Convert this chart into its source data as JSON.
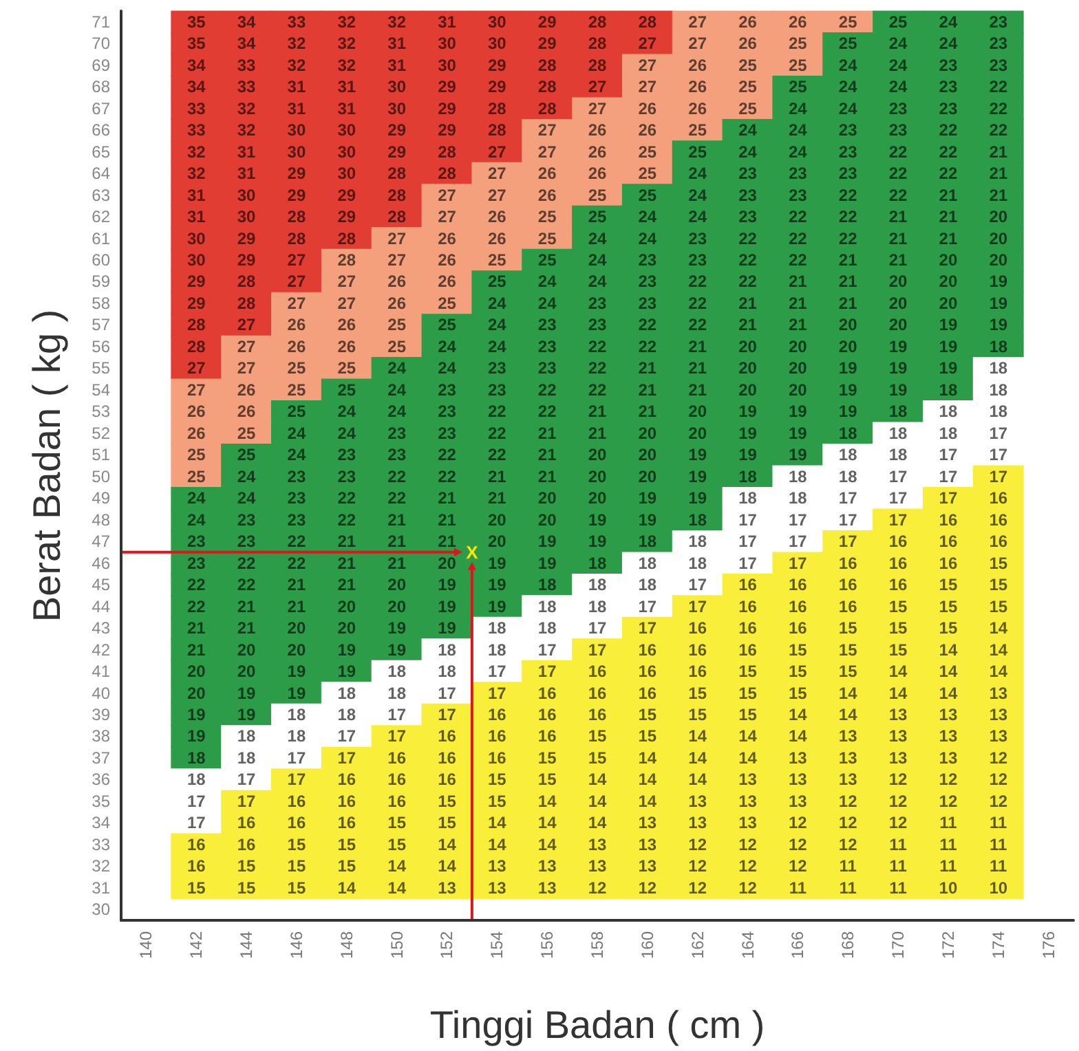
{
  "chart_data": {
    "type": "heatmap",
    "xlabel": "Tinggi Badan ( cm )",
    "ylabel": "Berat Badan ( kg )",
    "data_labels": true,
    "categories": [
      "140",
      "142",
      "144",
      "146",
      "148",
      "150",
      "152",
      "154",
      "156",
      "158",
      "160",
      "162",
      "164",
      "166",
      "168",
      "170",
      "172",
      "174",
      "176"
    ],
    "y_categories": [
      "71",
      "70",
      "69",
      "68",
      "67",
      "66",
      "65",
      "64",
      "63",
      "62",
      "61",
      "60",
      "59",
      "58",
      "57",
      "56",
      "55",
      "54",
      "53",
      "52",
      "51",
      "50",
      "49",
      "48",
      "47",
      "46",
      "45",
      "44",
      "43",
      "42",
      "41",
      "40",
      "39",
      "38",
      "37",
      "36",
      "35",
      "34",
      "33",
      "32",
      "31",
      "30"
    ],
    "cells": [
      [
        null,
        35,
        34,
        33,
        32,
        32,
        31,
        30,
        29,
        28,
        28,
        27,
        26,
        26,
        25,
        25,
        24,
        23,
        null
      ],
      [
        null,
        35,
        34,
        32,
        32,
        31,
        30,
        30,
        29,
        28,
        27,
        27,
        26,
        25,
        25,
        24,
        24,
        23,
        null
      ],
      [
        null,
        34,
        33,
        32,
        32,
        31,
        30,
        29,
        28,
        28,
        27,
        26,
        25,
        25,
        24,
        24,
        23,
        23,
        null
      ],
      [
        null,
        34,
        33,
        31,
        31,
        30,
        29,
        29,
        28,
        27,
        27,
        26,
        25,
        25,
        24,
        24,
        23,
        22,
        null
      ],
      [
        null,
        33,
        32,
        31,
        31,
        30,
        29,
        28,
        28,
        27,
        26,
        26,
        25,
        24,
        24,
        23,
        23,
        22,
        null
      ],
      [
        null,
        33,
        32,
        30,
        30,
        29,
        29,
        28,
        27,
        26,
        26,
        25,
        24,
        24,
        23,
        23,
        22,
        22,
        null
      ],
      [
        null,
        32,
        31,
        30,
        30,
        29,
        28,
        27,
        27,
        26,
        25,
        25,
        24,
        24,
        23,
        22,
        22,
        21,
        null
      ],
      [
        null,
        32,
        31,
        29,
        30,
        28,
        28,
        27,
        26,
        26,
        25,
        24,
        23,
        23,
        23,
        22,
        22,
        21,
        null
      ],
      [
        null,
        31,
        30,
        29,
        29,
        28,
        27,
        27,
        26,
        25,
        25,
        24,
        23,
        23,
        22,
        22,
        21,
        21,
        null
      ],
      [
        null,
        31,
        30,
        28,
        29,
        28,
        27,
        26,
        25,
        25,
        24,
        24,
        23,
        22,
        22,
        21,
        21,
        20,
        null
      ],
      [
        null,
        30,
        29,
        28,
        28,
        27,
        26,
        26,
        25,
        24,
        24,
        23,
        22,
        22,
        22,
        21,
        21,
        20,
        null
      ],
      [
        null,
        30,
        29,
        27,
        28,
        27,
        26,
        25,
        25,
        24,
        23,
        23,
        22,
        22,
        21,
        21,
        20,
        20,
        null
      ],
      [
        null,
        29,
        28,
        27,
        27,
        26,
        26,
        25,
        24,
        24,
        23,
        22,
        22,
        21,
        21,
        20,
        20,
        19,
        null
      ],
      [
        null,
        29,
        28,
        27,
        27,
        26,
        25,
        24,
        24,
        23,
        23,
        22,
        21,
        21,
        21,
        20,
        20,
        19,
        null
      ],
      [
        null,
        28,
        27,
        26,
        26,
        25,
        25,
        24,
        23,
        23,
        22,
        22,
        21,
        21,
        20,
        20,
        19,
        19,
        null
      ],
      [
        null,
        28,
        27,
        26,
        26,
        25,
        24,
        24,
        23,
        22,
        22,
        21,
        20,
        20,
        20,
        19,
        19,
        18,
        null
      ],
      [
        null,
        27,
        27,
        25,
        25,
        24,
        24,
        23,
        23,
        22,
        21,
        21,
        20,
        20,
        19,
        19,
        19,
        18,
        null
      ],
      [
        null,
        27,
        26,
        25,
        25,
        24,
        23,
        23,
        22,
        22,
        21,
        21,
        20,
        20,
        19,
        19,
        18,
        18,
        null
      ],
      [
        null,
        26,
        26,
        25,
        24,
        24,
        23,
        22,
        22,
        21,
        21,
        20,
        19,
        19,
        19,
        18,
        18,
        18,
        null
      ],
      [
        null,
        26,
        25,
        24,
        24,
        23,
        23,
        22,
        21,
        21,
        20,
        20,
        19,
        19,
        18,
        18,
        18,
        17,
        null
      ],
      [
        null,
        25,
        25,
        24,
        23,
        23,
        22,
        22,
        21,
        20,
        20,
        19,
        19,
        19,
        18,
        18,
        17,
        17,
        null
      ],
      [
        null,
        25,
        24,
        23,
        23,
        22,
        22,
        21,
        21,
        20,
        20,
        19,
        18,
        18,
        18,
        17,
        17,
        17,
        null
      ],
      [
        null,
        24,
        24,
        23,
        22,
        22,
        21,
        21,
        20,
        20,
        19,
        19,
        18,
        18,
        17,
        17,
        17,
        16,
        null
      ],
      [
        null,
        24,
        23,
        23,
        22,
        21,
        21,
        20,
        20,
        19,
        19,
        18,
        17,
        17,
        17,
        17,
        16,
        16,
        null
      ],
      [
        null,
        23,
        23,
        22,
        21,
        21,
        21,
        20,
        19,
        19,
        18,
        18,
        17,
        17,
        17,
        16,
        16,
        16,
        null
      ],
      [
        null,
        23,
        22,
        22,
        21,
        21,
        20,
        19,
        19,
        18,
        18,
        18,
        17,
        17,
        16,
        16,
        16,
        15,
        null
      ],
      [
        null,
        22,
        22,
        21,
        21,
        20,
        19,
        19,
        18,
        18,
        18,
        17,
        16,
        16,
        16,
        16,
        15,
        15,
        null
      ],
      [
        null,
        22,
        21,
        21,
        20,
        20,
        19,
        19,
        18,
        18,
        17,
        17,
        16,
        16,
        16,
        15,
        15,
        15,
        null
      ],
      [
        null,
        21,
        21,
        20,
        20,
        19,
        19,
        18,
        18,
        17,
        17,
        16,
        16,
        16,
        15,
        15,
        15,
        14,
        null
      ],
      [
        null,
        21,
        20,
        20,
        19,
        19,
        18,
        18,
        17,
        17,
        16,
        16,
        16,
        15,
        15,
        15,
        14,
        14,
        null
      ],
      [
        null,
        20,
        20,
        19,
        19,
        18,
        18,
        17,
        17,
        16,
        16,
        16,
        15,
        15,
        15,
        14,
        14,
        14,
        null
      ],
      [
        null,
        20,
        19,
        19,
        18,
        18,
        17,
        17,
        16,
        16,
        16,
        15,
        15,
        15,
        14,
        14,
        14,
        13,
        null
      ],
      [
        null,
        19,
        19,
        18,
        18,
        17,
        17,
        16,
        16,
        16,
        15,
        15,
        15,
        14,
        14,
        13,
        13,
        13,
        null
      ],
      [
        null,
        19,
        18,
        18,
        17,
        17,
        16,
        16,
        16,
        15,
        15,
        14,
        14,
        14,
        13,
        13,
        13,
        13,
        null
      ],
      [
        null,
        18,
        18,
        17,
        17,
        16,
        16,
        16,
        15,
        15,
        14,
        14,
        14,
        13,
        13,
        13,
        13,
        12,
        null
      ],
      [
        null,
        18,
        17,
        17,
        16,
        16,
        16,
        15,
        15,
        14,
        14,
        14,
        13,
        13,
        13,
        12,
        12,
        12,
        null
      ],
      [
        null,
        17,
        17,
        16,
        16,
        16,
        15,
        15,
        14,
        14,
        14,
        13,
        13,
        13,
        12,
        12,
        12,
        12,
        null
      ],
      [
        null,
        17,
        16,
        16,
        16,
        15,
        15,
        14,
        14,
        14,
        13,
        13,
        13,
        12,
        12,
        12,
        11,
        11,
        null
      ],
      [
        null,
        16,
        16,
        15,
        15,
        15,
        14,
        14,
        14,
        13,
        13,
        12,
        12,
        12,
        12,
        11,
        11,
        11,
        null
      ],
      [
        null,
        16,
        15,
        15,
        15,
        14,
        14,
        13,
        13,
        13,
        13,
        12,
        12,
        12,
        11,
        11,
        11,
        11,
        null
      ],
      [
        null,
        15,
        15,
        15,
        14,
        14,
        13,
        13,
        13,
        12,
        12,
        12,
        12,
        11,
        11,
        11,
        10,
        10,
        null
      ],
      [
        null,
        null,
        null,
        null,
        null,
        null,
        null,
        null,
        null,
        null,
        null,
        null,
        null,
        null,
        null,
        null,
        null,
        null,
        null
      ]
    ],
    "colors": [
      [
        null,
        "#e23d33",
        "#e23d33",
        "#e23d33",
        "#e23d33",
        "#e23d33",
        "#e23d33",
        "#e23d33",
        "#e23d33",
        "#e23d33",
        "#e23d33",
        "#f5a07c",
        "#f5a07c",
        "#f5a07c",
        "#f5a07c",
        "#2c9c48",
        "#2c9c48",
        "#2c9c48",
        null
      ],
      [
        null,
        "#e23d33",
        "#e23d33",
        "#e23d33",
        "#e23d33",
        "#e23d33",
        "#e23d33",
        "#e23d33",
        "#e23d33",
        "#e23d33",
        "#e23d33",
        "#f5a07c",
        "#f5a07c",
        "#f5a07c",
        "#2c9c48",
        "#2c9c48",
        "#2c9c48",
        "#2c9c48",
        null
      ],
      [
        null,
        "#e23d33",
        "#e23d33",
        "#e23d33",
        "#e23d33",
        "#e23d33",
        "#e23d33",
        "#e23d33",
        "#e23d33",
        "#e23d33",
        "#f5a07c",
        "#f5a07c",
        "#f5a07c",
        "#f5a07c",
        "#2c9c48",
        "#2c9c48",
        "#2c9c48",
        "#2c9c48",
        null
      ],
      [
        null,
        "#e23d33",
        "#e23d33",
        "#e23d33",
        "#e23d33",
        "#e23d33",
        "#e23d33",
        "#e23d33",
        "#e23d33",
        "#e23d33",
        "#f5a07c",
        "#f5a07c",
        "#f5a07c",
        "#2c9c48",
        "#2c9c48",
        "#2c9c48",
        "#2c9c48",
        "#2c9c48",
        null
      ],
      [
        null,
        "#e23d33",
        "#e23d33",
        "#e23d33",
        "#e23d33",
        "#e23d33",
        "#e23d33",
        "#e23d33",
        "#e23d33",
        "#f5a07c",
        "#f5a07c",
        "#f5a07c",
        "#f5a07c",
        "#2c9c48",
        "#2c9c48",
        "#2c9c48",
        "#2c9c48",
        "#2c9c48",
        null
      ],
      [
        null,
        "#e23d33",
        "#e23d33",
        "#e23d33",
        "#e23d33",
        "#e23d33",
        "#e23d33",
        "#e23d33",
        "#f5a07c",
        "#f5a07c",
        "#f5a07c",
        "#f5a07c",
        "#2c9c48",
        "#2c9c48",
        "#2c9c48",
        "#2c9c48",
        "#2c9c48",
        "#2c9c48",
        null
      ],
      [
        null,
        "#e23d33",
        "#e23d33",
        "#e23d33",
        "#e23d33",
        "#e23d33",
        "#e23d33",
        "#e23d33",
        "#f5a07c",
        "#f5a07c",
        "#f5a07c",
        "#2c9c48",
        "#2c9c48",
        "#2c9c48",
        "#2c9c48",
        "#2c9c48",
        "#2c9c48",
        "#2c9c48",
        null
      ],
      [
        null,
        "#e23d33",
        "#e23d33",
        "#e23d33",
        "#e23d33",
        "#e23d33",
        "#e23d33",
        "#f5a07c",
        "#f5a07c",
        "#f5a07c",
        "#f5a07c",
        "#2c9c48",
        "#2c9c48",
        "#2c9c48",
        "#2c9c48",
        "#2c9c48",
        "#2c9c48",
        "#2c9c48",
        null
      ],
      [
        null,
        "#e23d33",
        "#e23d33",
        "#e23d33",
        "#e23d33",
        "#e23d33",
        "#f5a07c",
        "#f5a07c",
        "#f5a07c",
        "#f5a07c",
        "#2c9c48",
        "#2c9c48",
        "#2c9c48",
        "#2c9c48",
        "#2c9c48",
        "#2c9c48",
        "#2c9c48",
        "#2c9c48",
        null
      ],
      [
        null,
        "#e23d33",
        "#e23d33",
        "#e23d33",
        "#e23d33",
        "#e23d33",
        "#f5a07c",
        "#f5a07c",
        "#f5a07c",
        "#2c9c48",
        "#2c9c48",
        "#2c9c48",
        "#2c9c48",
        "#2c9c48",
        "#2c9c48",
        "#2c9c48",
        "#2c9c48",
        "#2c9c48",
        null
      ],
      [
        null,
        "#e23d33",
        "#e23d33",
        "#e23d33",
        "#e23d33",
        "#f5a07c",
        "#f5a07c",
        "#f5a07c",
        "#f5a07c",
        "#2c9c48",
        "#2c9c48",
        "#2c9c48",
        "#2c9c48",
        "#2c9c48",
        "#2c9c48",
        "#2c9c48",
        "#2c9c48",
        "#2c9c48",
        null
      ],
      [
        null,
        "#e23d33",
        "#e23d33",
        "#e23d33",
        "#f5a07c",
        "#f5a07c",
        "#f5a07c",
        "#f5a07c",
        "#2c9c48",
        "#2c9c48",
        "#2c9c48",
        "#2c9c48",
        "#2c9c48",
        "#2c9c48",
        "#2c9c48",
        "#2c9c48",
        "#2c9c48",
        "#2c9c48",
        null
      ],
      [
        null,
        "#e23d33",
        "#e23d33",
        "#e23d33",
        "#f5a07c",
        "#f5a07c",
        "#f5a07c",
        "#2c9c48",
        "#2c9c48",
        "#2c9c48",
        "#2c9c48",
        "#2c9c48",
        "#2c9c48",
        "#2c9c48",
        "#2c9c48",
        "#2c9c48",
        "#2c9c48",
        "#2c9c48",
        null
      ],
      [
        null,
        "#e23d33",
        "#e23d33",
        "#f5a07c",
        "#f5a07c",
        "#f5a07c",
        "#f5a07c",
        "#2c9c48",
        "#2c9c48",
        "#2c9c48",
        "#2c9c48",
        "#2c9c48",
        "#2c9c48",
        "#2c9c48",
        "#2c9c48",
        "#2c9c48",
        "#2c9c48",
        "#2c9c48",
        null
      ],
      [
        null,
        "#e23d33",
        "#e23d33",
        "#f5a07c",
        "#f5a07c",
        "#f5a07c",
        "#2c9c48",
        "#2c9c48",
        "#2c9c48",
        "#2c9c48",
        "#2c9c48",
        "#2c9c48",
        "#2c9c48",
        "#2c9c48",
        "#2c9c48",
        "#2c9c48",
        "#2c9c48",
        "#2c9c48",
        null
      ],
      [
        null,
        "#e23d33",
        "#f5a07c",
        "#f5a07c",
        "#f5a07c",
        "#f5a07c",
        "#2c9c48",
        "#2c9c48",
        "#2c9c48",
        "#2c9c48",
        "#2c9c48",
        "#2c9c48",
        "#2c9c48",
        "#2c9c48",
        "#2c9c48",
        "#2c9c48",
        "#2c9c48",
        "#2c9c48",
        null
      ],
      [
        null,
        "#e23d33",
        "#f5a07c",
        "#f5a07c",
        "#f5a07c",
        "#2c9c48",
        "#2c9c48",
        "#2c9c48",
        "#2c9c48",
        "#2c9c48",
        "#2c9c48",
        "#2c9c48",
        "#2c9c48",
        "#2c9c48",
        "#2c9c48",
        "#2c9c48",
        "#2c9c48",
        "#ffffff",
        null
      ],
      [
        null,
        "#f5a07c",
        "#f5a07c",
        "#f5a07c",
        "#2c9c48",
        "#2c9c48",
        "#2c9c48",
        "#2c9c48",
        "#2c9c48",
        "#2c9c48",
        "#2c9c48",
        "#2c9c48",
        "#2c9c48",
        "#2c9c48",
        "#2c9c48",
        "#2c9c48",
        "#2c9c48",
        "#ffffff",
        null
      ],
      [
        null,
        "#f5a07c",
        "#f5a07c",
        "#2c9c48",
        "#2c9c48",
        "#2c9c48",
        "#2c9c48",
        "#2c9c48",
        "#2c9c48",
        "#2c9c48",
        "#2c9c48",
        "#2c9c48",
        "#2c9c48",
        "#2c9c48",
        "#2c9c48",
        "#2c9c48",
        "#ffffff",
        "#ffffff",
        null
      ],
      [
        null,
        "#f5a07c",
        "#f5a07c",
        "#2c9c48",
        "#2c9c48",
        "#2c9c48",
        "#2c9c48",
        "#2c9c48",
        "#2c9c48",
        "#2c9c48",
        "#2c9c48",
        "#2c9c48",
        "#2c9c48",
        "#2c9c48",
        "#2c9c48",
        "#ffffff",
        "#ffffff",
        "#ffffff",
        null
      ],
      [
        null,
        "#f5a07c",
        "#2c9c48",
        "#2c9c48",
        "#2c9c48",
        "#2c9c48",
        "#2c9c48",
        "#2c9c48",
        "#2c9c48",
        "#2c9c48",
        "#2c9c48",
        "#2c9c48",
        "#2c9c48",
        "#2c9c48",
        "#ffffff",
        "#ffffff",
        "#ffffff",
        "#ffffff",
        null
      ],
      [
        null,
        "#f5a07c",
        "#2c9c48",
        "#2c9c48",
        "#2c9c48",
        "#2c9c48",
        "#2c9c48",
        "#2c9c48",
        "#2c9c48",
        "#2c9c48",
        "#2c9c48",
        "#2c9c48",
        "#2c9c48",
        "#ffffff",
        "#ffffff",
        "#ffffff",
        "#ffffff",
        "#f9ef3b",
        null
      ],
      [
        null,
        "#2c9c48",
        "#2c9c48",
        "#2c9c48",
        "#2c9c48",
        "#2c9c48",
        "#2c9c48",
        "#2c9c48",
        "#2c9c48",
        "#2c9c48",
        "#2c9c48",
        "#2c9c48",
        "#ffffff",
        "#ffffff",
        "#ffffff",
        "#ffffff",
        "#f9ef3b",
        "#f9ef3b",
        null
      ],
      [
        null,
        "#2c9c48",
        "#2c9c48",
        "#2c9c48",
        "#2c9c48",
        "#2c9c48",
        "#2c9c48",
        "#2c9c48",
        "#2c9c48",
        "#2c9c48",
        "#2c9c48",
        "#2c9c48",
        "#ffffff",
        "#ffffff",
        "#ffffff",
        "#f9ef3b",
        "#f9ef3b",
        "#f9ef3b",
        null
      ],
      [
        null,
        "#2c9c48",
        "#2c9c48",
        "#2c9c48",
        "#2c9c48",
        "#2c9c48",
        "#2c9c48",
        "#2c9c48",
        "#2c9c48",
        "#2c9c48",
        "#2c9c48",
        "#ffffff",
        "#ffffff",
        "#ffffff",
        "#f9ef3b",
        "#f9ef3b",
        "#f9ef3b",
        "#f9ef3b",
        null
      ],
      [
        null,
        "#2c9c48",
        "#2c9c48",
        "#2c9c48",
        "#2c9c48",
        "#2c9c48",
        "#2c9c48",
        "#2c9c48",
        "#2c9c48",
        "#2c9c48",
        "#ffffff",
        "#ffffff",
        "#ffffff",
        "#f9ef3b",
        "#f9ef3b",
        "#f9ef3b",
        "#f9ef3b",
        "#f9ef3b",
        null
      ],
      [
        null,
        "#2c9c48",
        "#2c9c48",
        "#2c9c48",
        "#2c9c48",
        "#2c9c48",
        "#2c9c48",
        "#2c9c48",
        "#2c9c48",
        "#ffffff",
        "#ffffff",
        "#ffffff",
        "#f9ef3b",
        "#f9ef3b",
        "#f9ef3b",
        "#f9ef3b",
        "#f9ef3b",
        "#f9ef3b",
        null
      ],
      [
        null,
        "#2c9c48",
        "#2c9c48",
        "#2c9c48",
        "#2c9c48",
        "#2c9c48",
        "#2c9c48",
        "#2c9c48",
        "#ffffff",
        "#ffffff",
        "#ffffff",
        "#f9ef3b",
        "#f9ef3b",
        "#f9ef3b",
        "#f9ef3b",
        "#f9ef3b",
        "#f9ef3b",
        "#f9ef3b",
        null
      ],
      [
        null,
        "#2c9c48",
        "#2c9c48",
        "#2c9c48",
        "#2c9c48",
        "#2c9c48",
        "#2c9c48",
        "#ffffff",
        "#ffffff",
        "#ffffff",
        "#f9ef3b",
        "#f9ef3b",
        "#f9ef3b",
        "#f9ef3b",
        "#f9ef3b",
        "#f9ef3b",
        "#f9ef3b",
        "#f9ef3b",
        null
      ],
      [
        null,
        "#2c9c48",
        "#2c9c48",
        "#2c9c48",
        "#2c9c48",
        "#2c9c48",
        "#ffffff",
        "#ffffff",
        "#ffffff",
        "#f9ef3b",
        "#f9ef3b",
        "#f9ef3b",
        "#f9ef3b",
        "#f9ef3b",
        "#f9ef3b",
        "#f9ef3b",
        "#f9ef3b",
        "#f9ef3b",
        null
      ],
      [
        null,
        "#2c9c48",
        "#2c9c48",
        "#2c9c48",
        "#2c9c48",
        "#ffffff",
        "#ffffff",
        "#ffffff",
        "#f9ef3b",
        "#f9ef3b",
        "#f9ef3b",
        "#f9ef3b",
        "#f9ef3b",
        "#f9ef3b",
        "#f9ef3b",
        "#f9ef3b",
        "#f9ef3b",
        "#f9ef3b",
        null
      ],
      [
        null,
        "#2c9c48",
        "#2c9c48",
        "#2c9c48",
        "#ffffff",
        "#ffffff",
        "#ffffff",
        "#f9ef3b",
        "#f9ef3b",
        "#f9ef3b",
        "#f9ef3b",
        "#f9ef3b",
        "#f9ef3b",
        "#f9ef3b",
        "#f9ef3b",
        "#f9ef3b",
        "#f9ef3b",
        "#f9ef3b",
        null
      ],
      [
        null,
        "#2c9c48",
        "#2c9c48",
        "#ffffff",
        "#ffffff",
        "#ffffff",
        "#f9ef3b",
        "#f9ef3b",
        "#f9ef3b",
        "#f9ef3b",
        "#f9ef3b",
        "#f9ef3b",
        "#f9ef3b",
        "#f9ef3b",
        "#f9ef3b",
        "#f9ef3b",
        "#f9ef3b",
        "#f9ef3b",
        null
      ],
      [
        null,
        "#2c9c48",
        "#ffffff",
        "#ffffff",
        "#ffffff",
        "#f9ef3b",
        "#f9ef3b",
        "#f9ef3b",
        "#f9ef3b",
        "#f9ef3b",
        "#f9ef3b",
        "#f9ef3b",
        "#f9ef3b",
        "#f9ef3b",
        "#f9ef3b",
        "#f9ef3b",
        "#f9ef3b",
        "#f9ef3b",
        null
      ],
      [
        null,
        "#2c9c48",
        "#ffffff",
        "#ffffff",
        "#f9ef3b",
        "#f9ef3b",
        "#f9ef3b",
        "#f9ef3b",
        "#f9ef3b",
        "#f9ef3b",
        "#f9ef3b",
        "#f9ef3b",
        "#f9ef3b",
        "#f9ef3b",
        "#f9ef3b",
        "#f9ef3b",
        "#f9ef3b",
        "#f9ef3b",
        null
      ],
      [
        null,
        "#ffffff",
        "#ffffff",
        "#f9ef3b",
        "#f9ef3b",
        "#f9ef3b",
        "#f9ef3b",
        "#f9ef3b",
        "#f9ef3b",
        "#f9ef3b",
        "#f9ef3b",
        "#f9ef3b",
        "#f9ef3b",
        "#f9ef3b",
        "#f9ef3b",
        "#f9ef3b",
        "#f9ef3b",
        "#f9ef3b",
        null
      ],
      [
        null,
        "#ffffff",
        "#f9ef3b",
        "#f9ef3b",
        "#f9ef3b",
        "#f9ef3b",
        "#f9ef3b",
        "#f9ef3b",
        "#f9ef3b",
        "#f9ef3b",
        "#f9ef3b",
        "#f9ef3b",
        "#f9ef3b",
        "#f9ef3b",
        "#f9ef3b",
        "#f9ef3b",
        "#f9ef3b",
        "#f9ef3b",
        null
      ],
      [
        null,
        "#ffffff",
        "#f9ef3b",
        "#f9ef3b",
        "#f9ef3b",
        "#f9ef3b",
        "#f9ef3b",
        "#f9ef3b",
        "#f9ef3b",
        "#f9ef3b",
        "#f9ef3b",
        "#f9ef3b",
        "#f9ef3b",
        "#f9ef3b",
        "#f9ef3b",
        "#f9ef3b",
        "#f9ef3b",
        "#f9ef3b",
        null
      ],
      [
        null,
        "#f9ef3b",
        "#f9ef3b",
        "#f9ef3b",
        "#f9ef3b",
        "#f9ef3b",
        "#f9ef3b",
        "#f9ef3b",
        "#f9ef3b",
        "#f9ef3b",
        "#f9ef3b",
        "#f9ef3b",
        "#f9ef3b",
        "#f9ef3b",
        "#f9ef3b",
        "#f9ef3b",
        "#f9ef3b",
        "#f9ef3b",
        null
      ],
      [
        null,
        "#f9ef3b",
        "#f9ef3b",
        "#f9ef3b",
        "#f9ef3b",
        "#f9ef3b",
        "#f9ef3b",
        "#f9ef3b",
        "#f9ef3b",
        "#f9ef3b",
        "#f9ef3b",
        "#f9ef3b",
        "#f9ef3b",
        "#f9ef3b",
        "#f9ef3b",
        "#f9ef3b",
        "#f9ef3b",
        "#f9ef3b",
        null
      ],
      [
        null,
        "#f9ef3b",
        "#f9ef3b",
        "#f9ef3b",
        "#f9ef3b",
        "#f9ef3b",
        "#f9ef3b",
        "#f9ef3b",
        "#f9ef3b",
        "#f9ef3b",
        "#f9ef3b",
        "#f9ef3b",
        "#f9ef3b",
        "#f9ef3b",
        "#f9ef3b",
        "#f9ef3b",
        "#f9ef3b",
        "#f9ef3b",
        null
      ],
      [
        null,
        null,
        null,
        null,
        null,
        null,
        null,
        null,
        null,
        null,
        null,
        null,
        null,
        null,
        null,
        null,
        null,
        null,
        null
      ]
    ],
    "annotations": [
      "X"
    ]
  }
}
